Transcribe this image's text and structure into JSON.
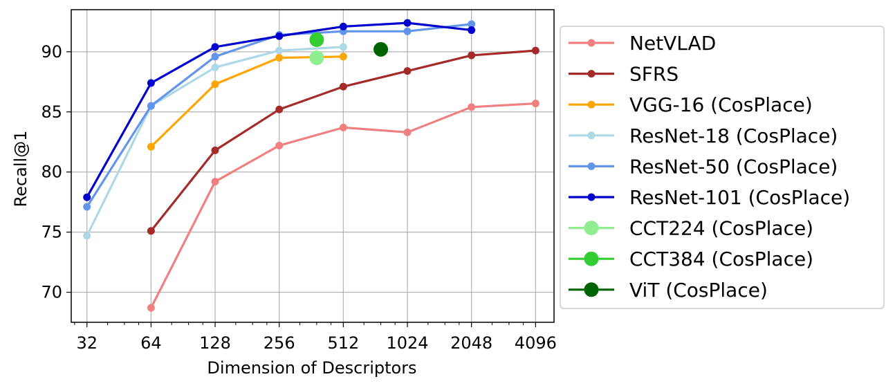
{
  "chart_data": {
    "type": "line",
    "title": "",
    "xlabel": "Dimension of Descriptors",
    "ylabel": "Recall@1",
    "x_scale": "log2",
    "xlim": [
      27,
      5000
    ],
    "ylim": [
      67.5,
      93.5
    ],
    "xticks": [
      32,
      64,
      128,
      256,
      512,
      1024,
      2048,
      4096
    ],
    "xtick_labels": [
      "32",
      "64",
      "128",
      "256",
      "512",
      "1024",
      "2048",
      "4096"
    ],
    "yticks": [
      70,
      75,
      80,
      85,
      90
    ],
    "ytick_labels": [
      "70",
      "75",
      "80",
      "85",
      "90"
    ],
    "grid": true,
    "legend_position": "outside-right",
    "series": [
      {
        "name": "NetVLAD",
        "color": "#f08080",
        "marker": "small",
        "line": true,
        "x": [
          64,
          128,
          256,
          512,
          1024,
          2048,
          4096
        ],
        "y": [
          68.7,
          79.2,
          82.2,
          83.7,
          83.3,
          85.4,
          85.7
        ]
      },
      {
        "name": "SFRS",
        "color": "#a52a2a",
        "marker": "small",
        "line": true,
        "x": [
          64,
          128,
          256,
          512,
          1024,
          2048,
          4096
        ],
        "y": [
          75.1,
          81.8,
          85.2,
          87.1,
          88.4,
          89.7,
          90.1
        ]
      },
      {
        "name": "VGG-16 (CosPlace)",
        "color": "#ffa500",
        "marker": "small",
        "line": true,
        "x": [
          64,
          128,
          256,
          512
        ],
        "y": [
          82.1,
          87.3,
          89.5,
          89.6
        ]
      },
      {
        "name": "ResNet-18 (CosPlace)",
        "color": "#add8e6",
        "marker": "small",
        "line": true,
        "x": [
          32,
          64,
          128,
          256,
          512
        ],
        "y": [
          74.7,
          85.5,
          88.7,
          90.1,
          90.4
        ]
      },
      {
        "name": "ResNet-50 (CosPlace)",
        "color": "#6495ed",
        "marker": "small",
        "line": true,
        "x": [
          32,
          64,
          128,
          256,
          512,
          1024,
          2048
        ],
        "y": [
          77.1,
          85.5,
          89.6,
          91.4,
          91.7,
          91.7,
          92.3
        ]
      },
      {
        "name": "ResNet-101 (CosPlace)",
        "color": "#0000cd",
        "marker": "small",
        "line": true,
        "x": [
          32,
          64,
          128,
          256,
          512,
          1024,
          2048
        ],
        "y": [
          77.9,
          87.4,
          90.4,
          91.3,
          92.1,
          92.4,
          91.8
        ]
      },
      {
        "name": "CCT224 (CosPlace)",
        "color": "#90ee90",
        "marker": "large",
        "line": false,
        "x": [
          384
        ],
        "y": [
          89.5
        ]
      },
      {
        "name": "CCT384 (CosPlace)",
        "color": "#32cd32",
        "marker": "large",
        "line": false,
        "x": [
          384
        ],
        "y": [
          91.0
        ]
      },
      {
        "name": "ViT (CosPlace)",
        "color": "#006400",
        "marker": "large",
        "line": false,
        "x": [
          768
        ],
        "y": [
          90.2
        ]
      }
    ]
  }
}
